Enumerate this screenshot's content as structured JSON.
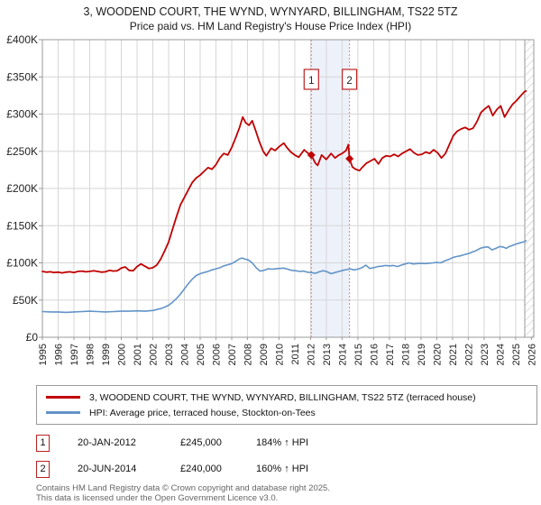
{
  "title": "3, WOODEND COURT, THE WYND, WYNYARD, BILLINGHAM, TS22 5TZ",
  "subtitle": "Price paid vs. HM Land Registry's House Price Index (HPI)",
  "legend": [
    {
      "label": "3, WOODEND COURT, THE WYND, WYNYARD, BILLINGHAM, TS22 5TZ (terraced house)",
      "color": "#c00000"
    },
    {
      "label": "HPI: Average price, terraced house, Stockton-on-Tees",
      "color": "#6394c8"
    }
  ],
  "transactions": [
    {
      "num": "1",
      "date": "20-JAN-2012",
      "price": "£245,000",
      "hpi": "184% ↑ HPI"
    },
    {
      "num": "2",
      "date": "20-JUN-2014",
      "price": "£240,000",
      "hpi": "160% ↑ HPI"
    }
  ],
  "footer": {
    "line1": "Contains HM Land Registry data © Crown copyright and database right 2025.",
    "line2": "This data is licensed under the Open Government Licence v3.0."
  },
  "chart_data": {
    "type": "line",
    "x_range": [
      1995,
      2026.15
    ],
    "y_range": [
      0,
      400000
    ],
    "x_ticks": [
      1995,
      1996,
      1997,
      1998,
      1999,
      2000,
      2001,
      2002,
      2003,
      2004,
      2005,
      2006,
      2007,
      2008,
      2009,
      2010,
      2011,
      2012,
      2013,
      2014,
      2015,
      2016,
      2017,
      2018,
      2019,
      2020,
      2021,
      2022,
      2023,
      2024,
      2025,
      2026
    ],
    "y_ticks": [
      {
        "v": 0,
        "label": "£0"
      },
      {
        "v": 50000,
        "label": "£50K"
      },
      {
        "v": 100000,
        "label": "£100K"
      },
      {
        "v": 150000,
        "label": "£150K"
      },
      {
        "v": 200000,
        "label": "£200K"
      },
      {
        "v": 250000,
        "label": "£250K"
      },
      {
        "v": 300000,
        "label": "£300K"
      },
      {
        "v": 350000,
        "label": "£350K"
      },
      {
        "v": 400000,
        "label": "£400K"
      }
    ],
    "band": [
      2012.05,
      2014.47
    ],
    "hatch_start": 2025.58,
    "markers": [
      {
        "x": 2012.05,
        "y": 245000,
        "label": "1",
        "date": "20-JAN-2012"
      },
      {
        "x": 2014.47,
        "y": 240000,
        "label": "2",
        "date": "20-JUN-2014"
      }
    ],
    "style": {
      "grid": "#d6d6d6",
      "axis": "#999999",
      "band": "#edf1fa",
      "dash": "#f47c7c",
      "hatch": "#bbbbbb",
      "box": "#bb2222",
      "tick_text": "#222222"
    },
    "series": [
      {
        "name": "3, WOODEND COURT, THE WYND, WYNYARD, BILLINGHAM, TS22 5TZ (terraced house)",
        "color": "#c00000",
        "points": [
          [
            1995.0,
            88500
          ],
          [
            1995.25,
            87500
          ],
          [
            1995.5,
            88000
          ],
          [
            1995.75,
            87000
          ],
          [
            1996.0,
            87500
          ],
          [
            1996.25,
            86500
          ],
          [
            1996.5,
            87500
          ],
          [
            1996.75,
            88000
          ],
          [
            1997.0,
            87000
          ],
          [
            1997.25,
            88500
          ],
          [
            1997.5,
            89000
          ],
          [
            1997.75,
            88000
          ],
          [
            1998.0,
            88500
          ],
          [
            1998.25,
            89500
          ],
          [
            1998.5,
            88500
          ],
          [
            1998.75,
            87500
          ],
          [
            1999.0,
            88000
          ],
          [
            1999.25,
            90000
          ],
          [
            1999.5,
            89000
          ],
          [
            1999.75,
            89500
          ],
          [
            2000.0,
            93000
          ],
          [
            2000.25,
            94500
          ],
          [
            2000.5,
            90000
          ],
          [
            2000.75,
            89500
          ],
          [
            2001.0,
            95000
          ],
          [
            2001.25,
            98500
          ],
          [
            2001.5,
            95500
          ],
          [
            2001.75,
            92500
          ],
          [
            2002.0,
            93500
          ],
          [
            2002.25,
            97000
          ],
          [
            2002.5,
            105000
          ],
          [
            2002.75,
            116000
          ],
          [
            2003.0,
            128000
          ],
          [
            2003.25,
            145000
          ],
          [
            2003.5,
            162000
          ],
          [
            2003.75,
            178000
          ],
          [
            2004.0,
            188000
          ],
          [
            2004.25,
            198000
          ],
          [
            2004.5,
            208000
          ],
          [
            2004.75,
            214000
          ],
          [
            2005.0,
            218000
          ],
          [
            2005.25,
            223000
          ],
          [
            2005.5,
            228000
          ],
          [
            2005.75,
            226000
          ],
          [
            2006.0,
            232000
          ],
          [
            2006.25,
            241000
          ],
          [
            2006.5,
            247000
          ],
          [
            2006.75,
            245000
          ],
          [
            2007.0,
            255000
          ],
          [
            2007.25,
            268000
          ],
          [
            2007.5,
            282000
          ],
          [
            2007.7,
            296000
          ],
          [
            2007.9,
            288000
          ],
          [
            2008.1,
            285000
          ],
          [
            2008.3,
            291000
          ],
          [
            2008.5,
            279000
          ],
          [
            2008.75,
            263000
          ],
          [
            2009.0,
            250000
          ],
          [
            2009.2,
            244000
          ],
          [
            2009.5,
            254000
          ],
          [
            2009.75,
            251000
          ],
          [
            2010.0,
            256000
          ],
          [
            2010.3,
            261000
          ],
          [
            2010.5,
            255000
          ],
          [
            2010.75,
            249000
          ],
          [
            2011.0,
            245000
          ],
          [
            2011.25,
            242000
          ],
          [
            2011.6,
            252000
          ],
          [
            2011.8,
            248000
          ],
          [
            2012.05,
            245000
          ],
          [
            2012.3,
            234000
          ],
          [
            2012.45,
            231000
          ],
          [
            2012.7,
            245000
          ],
          [
            2013.0,
            239000
          ],
          [
            2013.3,
            247000
          ],
          [
            2013.55,
            241000
          ],
          [
            2013.8,
            245000
          ],
          [
            2014.0,
            247000
          ],
          [
            2014.25,
            251000
          ],
          [
            2014.4,
            259000
          ],
          [
            2014.47,
            240000
          ],
          [
            2014.65,
            229000
          ],
          [
            2014.85,
            226000
          ],
          [
            2015.1,
            224000
          ],
          [
            2015.3,
            229000
          ],
          [
            2015.55,
            234000
          ],
          [
            2015.8,
            237000
          ],
          [
            2016.05,
            240000
          ],
          [
            2016.3,
            233000
          ],
          [
            2016.55,
            241000
          ],
          [
            2016.8,
            244000
          ],
          [
            2017.05,
            243000
          ],
          [
            2017.3,
            246000
          ],
          [
            2017.55,
            243000
          ],
          [
            2017.8,
            247000
          ],
          [
            2018.05,
            250000
          ],
          [
            2018.3,
            253000
          ],
          [
            2018.55,
            248000
          ],
          [
            2018.8,
            245000
          ],
          [
            2019.05,
            246000
          ],
          [
            2019.3,
            249000
          ],
          [
            2019.55,
            247000
          ],
          [
            2019.8,
            252000
          ],
          [
            2020.05,
            248000
          ],
          [
            2020.3,
            241000
          ],
          [
            2020.55,
            247000
          ],
          [
            2020.8,
            259000
          ],
          [
            2021.05,
            271000
          ],
          [
            2021.3,
            277000
          ],
          [
            2021.55,
            280000
          ],
          [
            2021.8,
            282000
          ],
          [
            2022.05,
            279000
          ],
          [
            2022.3,
            281000
          ],
          [
            2022.55,
            290000
          ],
          [
            2022.8,
            302000
          ],
          [
            2023.05,
            307000
          ],
          [
            2023.3,
            311000
          ],
          [
            2023.55,
            298000
          ],
          [
            2023.8,
            306000
          ],
          [
            2024.05,
            311000
          ],
          [
            2024.3,
            296000
          ],
          [
            2024.55,
            305000
          ],
          [
            2024.8,
            313000
          ],
          [
            2025.05,
            318000
          ],
          [
            2025.3,
            324000
          ],
          [
            2025.55,
            330000
          ],
          [
            2025.65,
            331000
          ]
        ]
      },
      {
        "name": "HPI: Average price, terraced house, Stockton-on-Tees",
        "color": "#6394c8",
        "points": [
          [
            1995.0,
            34500
          ],
          [
            1995.5,
            34000
          ],
          [
            1996.0,
            34000
          ],
          [
            1996.5,
            33500
          ],
          [
            1997.0,
            34000
          ],
          [
            1997.5,
            34500
          ],
          [
            1998.0,
            35000
          ],
          [
            1998.5,
            34500
          ],
          [
            1999.0,
            34000
          ],
          [
            1999.5,
            34500
          ],
          [
            2000.0,
            35000
          ],
          [
            2000.5,
            35000
          ],
          [
            2001.0,
            35500
          ],
          [
            2001.5,
            35000
          ],
          [
            2002.0,
            36000
          ],
          [
            2002.5,
            38500
          ],
          [
            2002.75,
            40500
          ],
          [
            2003.0,
            43000
          ],
          [
            2003.25,
            47000
          ],
          [
            2003.5,
            52000
          ],
          [
            2003.75,
            58000
          ],
          [
            2004.0,
            65000
          ],
          [
            2004.25,
            72000
          ],
          [
            2004.5,
            78000
          ],
          [
            2004.75,
            83000
          ],
          [
            2005.0,
            85500
          ],
          [
            2005.25,
            87000
          ],
          [
            2005.5,
            88500
          ],
          [
            2005.75,
            90500
          ],
          [
            2006.0,
            92000
          ],
          [
            2006.25,
            93500
          ],
          [
            2006.5,
            96000
          ],
          [
            2006.75,
            97500
          ],
          [
            2007.0,
            99000
          ],
          [
            2007.25,
            102000
          ],
          [
            2007.5,
            105500
          ],
          [
            2007.65,
            106500
          ],
          [
            2007.85,
            105000
          ],
          [
            2008.05,
            104000
          ],
          [
            2008.3,
            100000
          ],
          [
            2008.55,
            93500
          ],
          [
            2008.8,
            89000
          ],
          [
            2009.05,
            90000
          ],
          [
            2009.3,
            92000
          ],
          [
            2009.55,
            91500
          ],
          [
            2009.8,
            92000
          ],
          [
            2010.05,
            92500
          ],
          [
            2010.3,
            93000
          ],
          [
            2010.55,
            91500
          ],
          [
            2010.8,
            90000
          ],
          [
            2011.05,
            89500
          ],
          [
            2011.3,
            88500
          ],
          [
            2011.55,
            89000
          ],
          [
            2011.8,
            87500
          ],
          [
            2012.05,
            87000
          ],
          [
            2012.3,
            86000
          ],
          [
            2012.55,
            88000
          ],
          [
            2012.8,
            89500
          ],
          [
            2013.05,
            88000
          ],
          [
            2013.3,
            85500
          ],
          [
            2013.55,
            87000
          ],
          [
            2013.8,
            88500
          ],
          [
            2014.05,
            90000
          ],
          [
            2014.3,
            91000
          ],
          [
            2014.5,
            92000
          ],
          [
            2014.75,
            90500
          ],
          [
            2015.0,
            91500
          ],
          [
            2015.25,
            93500
          ],
          [
            2015.5,
            97000
          ],
          [
            2015.75,
            92500
          ],
          [
            2016.0,
            93500
          ],
          [
            2016.25,
            95000
          ],
          [
            2016.5,
            95500
          ],
          [
            2016.75,
            96500
          ],
          [
            2017.0,
            96000
          ],
          [
            2017.25,
            96500
          ],
          [
            2017.5,
            95000
          ],
          [
            2017.75,
            97000
          ],
          [
            2018.0,
            98500
          ],
          [
            2018.25,
            100000
          ],
          [
            2018.5,
            98500
          ],
          [
            2018.75,
            99000
          ],
          [
            2019.0,
            99500
          ],
          [
            2019.25,
            99000
          ],
          [
            2019.5,
            99500
          ],
          [
            2019.75,
            100000
          ],
          [
            2020.0,
            100500
          ],
          [
            2020.25,
            100000
          ],
          [
            2020.5,
            102500
          ],
          [
            2020.75,
            104500
          ],
          [
            2021.0,
            107000
          ],
          [
            2021.25,
            108500
          ],
          [
            2021.5,
            109500
          ],
          [
            2021.75,
            111000
          ],
          [
            2022.0,
            112500
          ],
          [
            2022.25,
            114500
          ],
          [
            2022.5,
            116500
          ],
          [
            2022.75,
            119500
          ],
          [
            2023.0,
            121000
          ],
          [
            2023.25,
            121500
          ],
          [
            2023.5,
            117500
          ],
          [
            2023.75,
            119500
          ],
          [
            2024.0,
            122000
          ],
          [
            2024.25,
            121000
          ],
          [
            2024.4,
            119500
          ],
          [
            2024.55,
            121500
          ],
          [
            2024.8,
            123500
          ],
          [
            2025.05,
            125500
          ],
          [
            2025.3,
            127000
          ],
          [
            2025.55,
            128500
          ],
          [
            2025.65,
            130000
          ]
        ]
      }
    ]
  }
}
